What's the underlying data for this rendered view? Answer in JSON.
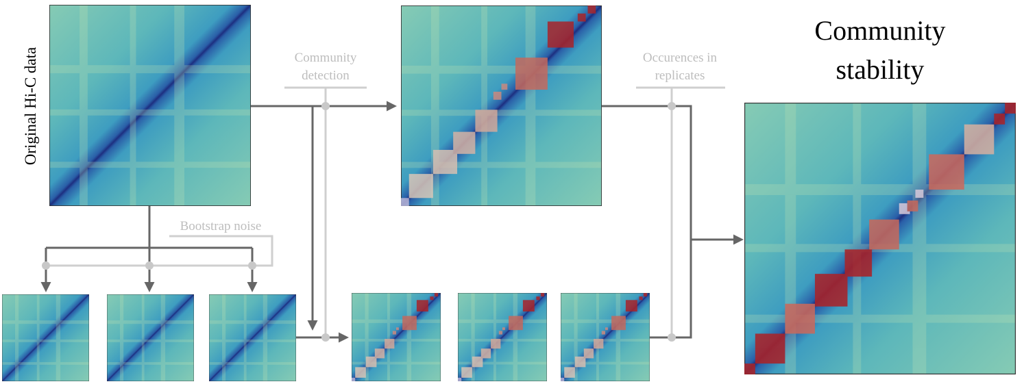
{
  "labels": {
    "original": "Original Hi-C data",
    "community_detection": [
      "Community",
      "detection"
    ],
    "occurrences": [
      "Occurences in",
      "replicates"
    ],
    "bootstrap": "Bootstrap noise",
    "stability": [
      "Community",
      "stability"
    ]
  }
}
